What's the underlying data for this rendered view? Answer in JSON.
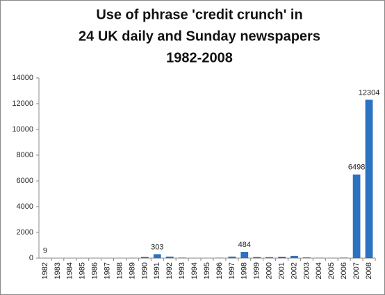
{
  "chart_data": {
    "type": "bar",
    "title": [
      "Use of phrase 'credit crunch' in",
      "24 UK daily and Sunday newspapers",
      "1982-2008"
    ],
    "categories": [
      "1982",
      "1983",
      "1984",
      "1985",
      "1986",
      "1987",
      "1988",
      "1989",
      "1990",
      "1991",
      "1992",
      "1993",
      "1994",
      "1995",
      "1996",
      "1997",
      "1998",
      "1999",
      "2000",
      "2001",
      "2002",
      "2003",
      "2004",
      "2005",
      "2006",
      "2007",
      "2008"
    ],
    "values": [
      9,
      5,
      5,
      5,
      5,
      5,
      10,
      20,
      100,
      303,
      120,
      40,
      10,
      10,
      30,
      120,
      484,
      90,
      80,
      110,
      170,
      60,
      30,
      20,
      40,
      6498,
      12304
    ],
    "value_labels": [
      "9",
      null,
      null,
      null,
      null,
      null,
      null,
      null,
      null,
      "303",
      null,
      null,
      null,
      null,
      null,
      null,
      "484",
      null,
      null,
      null,
      null,
      null,
      null,
      null,
      null,
      "6498",
      "12304"
    ],
    "color": "#2b72c2",
    "ylim": [
      0,
      14000
    ],
    "yticks": [
      0,
      2000,
      4000,
      6000,
      8000,
      10000,
      12000,
      14000
    ],
    "grid": false
  }
}
